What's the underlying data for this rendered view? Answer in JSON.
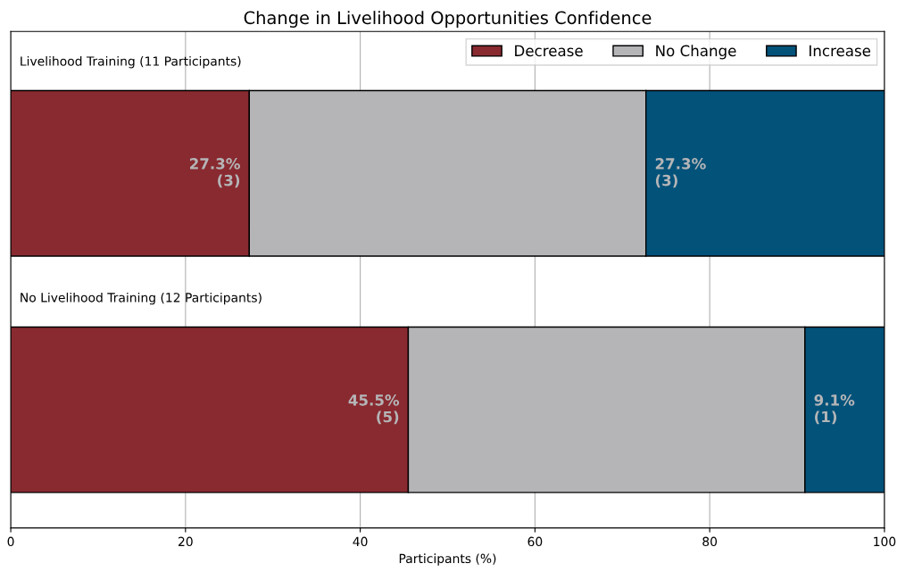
{
  "chart_data": {
    "type": "bar",
    "orientation": "horizontal",
    "stacked": true,
    "title": "Change in Livelihood Opportunities Confidence",
    "xlabel": "Participants (%)",
    "categories": [
      "Livelihood Training (11 Participants)",
      "No Livelihood Training (12 Participants)"
    ],
    "series": [
      {
        "name": "Decrease",
        "color": "#882a30",
        "values": [
          27.3,
          45.5
        ],
        "value_labels": [
          "27.3%\n(3)",
          "45.5%\n(5)"
        ]
      },
      {
        "name": "No Change",
        "color": "#b5b5b7",
        "values": [
          45.4,
          45.4
        ],
        "value_labels": [
          null,
          null
        ]
      },
      {
        "name": "Increase",
        "color": "#02527a",
        "values": [
          27.3,
          9.1
        ],
        "value_labels": [
          "27.3%\n(3)",
          "9.1%\n(1)"
        ]
      }
    ],
    "xlim": [
      0,
      100
    ],
    "xticks": [
      0,
      20,
      40,
      60,
      80,
      100
    ],
    "grid": "x",
    "legend": "top right",
    "tick_labels": "x"
  }
}
